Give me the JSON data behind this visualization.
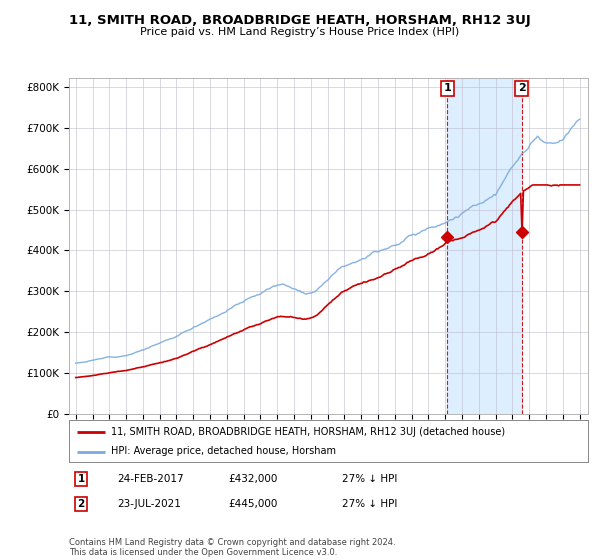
{
  "title": "11, SMITH ROAD, BROADBRIDGE HEATH, HORSHAM, RH12 3UJ",
  "subtitle": "Price paid vs. HM Land Registry’s House Price Index (HPI)",
  "legend_line1": "11, SMITH ROAD, BROADBRIDGE HEATH, HORSHAM, RH12 3UJ (detached house)",
  "legend_line2": "HPI: Average price, detached house, Horsham",
  "annotation1_date": "24-FEB-2017",
  "annotation1_price": "£432,000",
  "annotation1_hpi": "27% ↓ HPI",
  "annotation2_date": "23-JUL-2021",
  "annotation2_price": "£445,000",
  "annotation2_hpi": "27% ↓ HPI",
  "footnote": "Contains HM Land Registry data © Crown copyright and database right 2024.\nThis data is licensed under the Open Government Licence v3.0.",
  "red_color": "#cc0000",
  "blue_color": "#7aaadd",
  "shade_color": "#ddeeff",
  "grid_color": "#bbbbcc",
  "background_color": "#ffffff",
  "ylim": [
    0,
    820000
  ],
  "yticks": [
    0,
    100000,
    200000,
    300000,
    400000,
    500000,
    600000,
    700000,
    800000
  ],
  "ytick_labels": [
    "£0",
    "£100K",
    "£200K",
    "£300K",
    "£400K",
    "£500K",
    "£600K",
    "£700K",
    "£800K"
  ],
  "purchase1_year": 2017.12,
  "purchase1_price": 432000,
  "purchase2_year": 2021.55,
  "purchase2_price": 445000
}
